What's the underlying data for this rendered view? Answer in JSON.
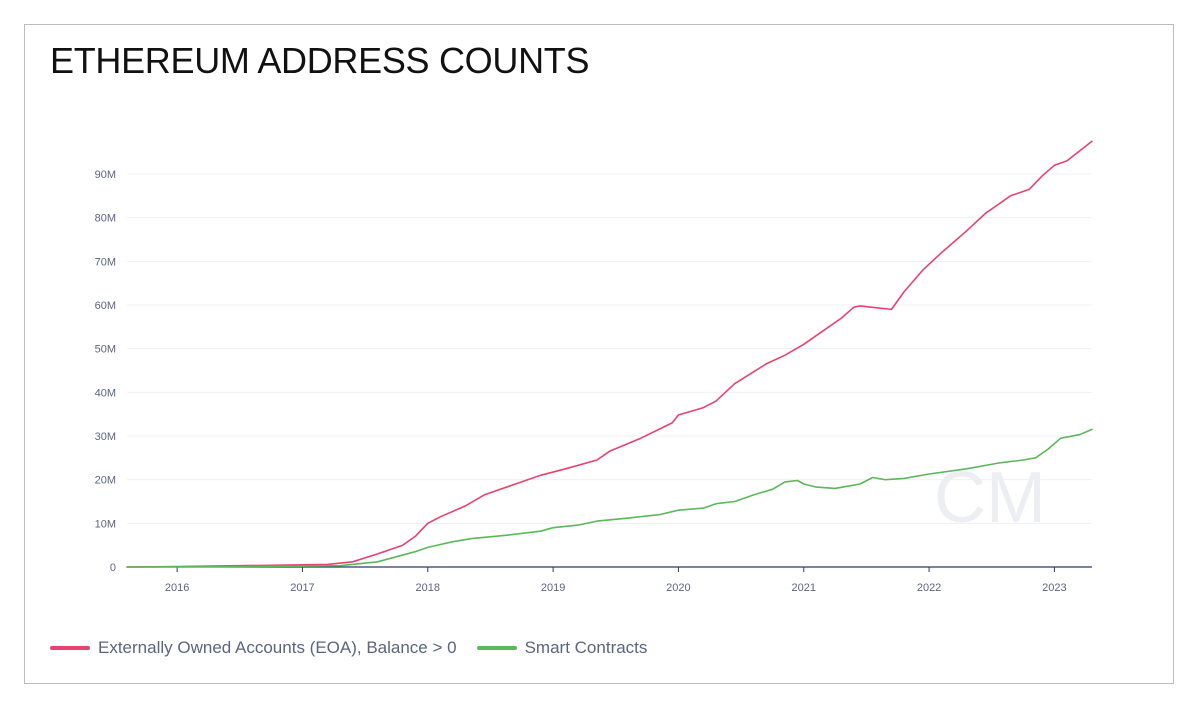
{
  "title": "ETHEREUM ADDRESS COUNTS",
  "watermark": "CM",
  "colors": {
    "eoa": "#e8426e",
    "contracts": "#5cb85c",
    "grid": "#eef0f4",
    "axis": "#2b3a67"
  },
  "legend": [
    {
      "label": "Externally Owned Accounts (EOA), Balance > 0",
      "color": "#e8426e",
      "icon": "line-swatch"
    },
    {
      "label": "Smart Contracts",
      "color": "#5cb85c",
      "icon": "line-swatch"
    }
  ],
  "chart_data": {
    "type": "line",
    "title": "ETHEREUM ADDRESS COUNTS",
    "xlabel": "",
    "ylabel": "",
    "xlim": [
      2015.6,
      2023.3
    ],
    "ylim": [
      0,
      90000000
    ],
    "y_ticks": [
      0,
      10000000,
      20000000,
      30000000,
      40000000,
      50000000,
      60000000,
      70000000,
      80000000,
      90000000
    ],
    "y_tick_labels": [
      "0",
      "10M",
      "20M",
      "30M",
      "40M",
      "50M",
      "60M",
      "70M",
      "80M",
      "90M"
    ],
    "x_ticks": [
      2016,
      2017,
      2018,
      2019,
      2020,
      2021,
      2022,
      2023
    ],
    "x_tick_labels": [
      "2016",
      "2017",
      "2018",
      "2019",
      "2020",
      "2021",
      "2022",
      "2023"
    ],
    "grid": true,
    "legend_position": "bottom-left",
    "series": [
      {
        "name": "Externally Owned Accounts (EOA), Balance > 0",
        "color": "#e8426e",
        "x": [
          2015.6,
          2016.0,
          2016.5,
          2017.0,
          2017.2,
          2017.4,
          2017.6,
          2017.8,
          2017.9,
          2018.0,
          2018.1,
          2018.3,
          2018.45,
          2018.7,
          2018.9,
          2019.1,
          2019.35,
          2019.45,
          2019.7,
          2019.95,
          2020.0,
          2020.2,
          2020.3,
          2020.45,
          2020.7,
          2020.85,
          2021.0,
          2021.15,
          2021.3,
          2021.4,
          2021.45,
          2021.6,
          2021.7,
          2021.8,
          2021.95,
          2022.1,
          2022.3,
          2022.45,
          2022.55,
          2022.65,
          2022.75,
          2022.8,
          2022.9,
          2023.0,
          2023.1,
          2023.3
        ],
        "values": [
          0,
          100000,
          300000,
          500000,
          600000,
          1200000,
          3000000,
          5000000,
          7000000,
          10000000,
          11500000,
          14000000,
          16500000,
          19000000,
          21000000,
          22500000,
          24500000,
          26500000,
          29500000,
          33000000,
          34800000,
          36500000,
          38000000,
          42000000,
          46500000,
          48500000,
          51000000,
          54000000,
          57000000,
          59500000,
          59800000,
          59300000,
          59000000,
          63000000,
          68000000,
          72000000,
          77000000,
          81000000,
          83000000,
          85000000,
          86000000,
          86500000,
          89500000,
          92000000,
          93000000,
          97500000
        ]
      },
      {
        "name": "Smart Contracts",
        "color": "#5cb85c",
        "x": [
          2015.6,
          2016.0,
          2016.5,
          2017.0,
          2017.3,
          2017.6,
          2017.9,
          2018.0,
          2018.2,
          2018.35,
          2018.6,
          2018.9,
          2019.0,
          2019.2,
          2019.35,
          2019.6,
          2019.85,
          2020.0,
          2020.2,
          2020.3,
          2020.45,
          2020.6,
          2020.75,
          2020.85,
          2020.95,
          2021.0,
          2021.1,
          2021.25,
          2021.35,
          2021.45,
          2021.55,
          2021.65,
          2021.8,
          2022.0,
          2022.3,
          2022.55,
          2022.75,
          2022.85,
          2022.95,
          2023.05,
          2023.2,
          2023.3
        ],
        "values": [
          0,
          50000,
          100000,
          200000,
          300000,
          1200000,
          3500000,
          4500000,
          5800000,
          6500000,
          7200000,
          8200000,
          9000000,
          9600000,
          10500000,
          11200000,
          12000000,
          13000000,
          13500000,
          14500000,
          15000000,
          16500000,
          17800000,
          19500000,
          19800000,
          19000000,
          18300000,
          18000000,
          18500000,
          19000000,
          20500000,
          20000000,
          20300000,
          21300000,
          22500000,
          23800000,
          24500000,
          25000000,
          27000000,
          29500000,
          30300000,
          31500000
        ]
      }
    ]
  }
}
